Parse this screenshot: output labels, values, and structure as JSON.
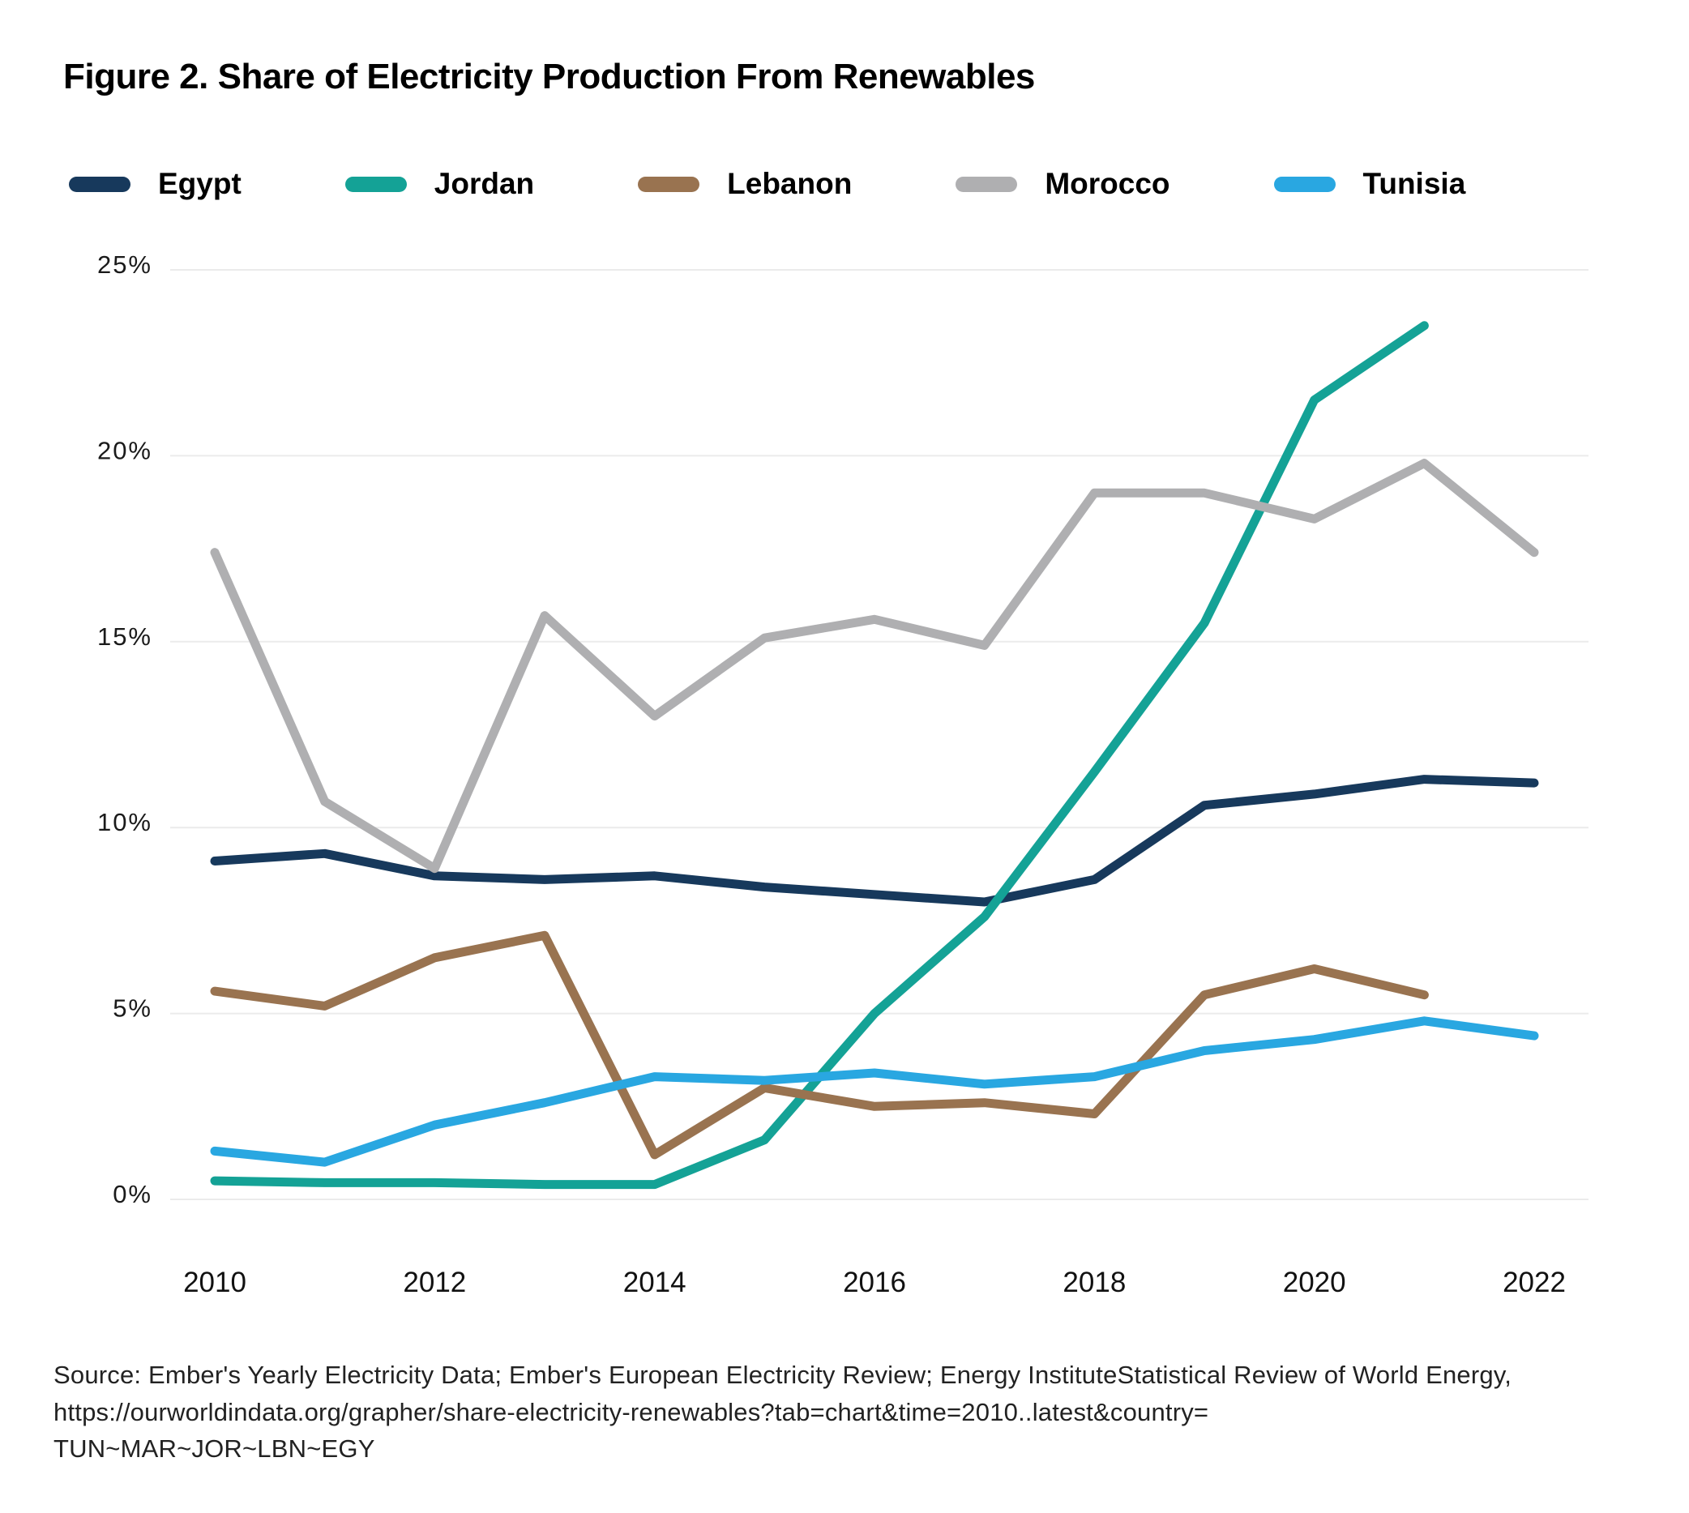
{
  "page": {
    "title": "Figure 2. Share of Electricity Production From Renewables"
  },
  "source": {
    "line1": "Source: Ember's Yearly Electricity Data; Ember's European Electricity Review; Energy InstituteStatistical Review of World Energy,",
    "line2": "https://ourworldindata.org/grapher/share-electricity-renewables?tab=chart&time=2010..latest&country=",
    "line3": "TUN~MAR~JOR~LBN~EGY"
  },
  "colors": {
    "egypt": "#17395C",
    "jordan": "#14A296",
    "lebanon": "#997350",
    "morocco": "#AFAFB1",
    "tunisia": "#29A7E1",
    "gridline": "#EBEBEB",
    "text": "#000000"
  },
  "chart_data": {
    "type": "line",
    "title": "Figure 2. Share of Electricity Production From Renewables",
    "xlabel": "",
    "ylabel": "",
    "x_tick_labels": [
      "2010",
      "2012",
      "2014",
      "2016",
      "2018",
      "2020",
      "2022"
    ],
    "x_tick_years": [
      2010,
      2012,
      2014,
      2016,
      2018,
      2020,
      2022
    ],
    "y_ticks": [
      0,
      5,
      10,
      15,
      20,
      25
    ],
    "y_tick_labels": [
      "0%",
      "5%",
      "10%",
      "15%",
      "20%",
      "25%"
    ],
    "ylim": [
      0,
      25
    ],
    "xlim": [
      2010,
      2022
    ],
    "grid": true,
    "legend_position": "top",
    "series": [
      {
        "name": "Egypt",
        "color": "#17395C",
        "years": [
          2010,
          2011,
          2012,
          2013,
          2014,
          2015,
          2016,
          2017,
          2018,
          2019,
          2020,
          2021,
          2022
        ],
        "values": [
          9.1,
          9.3,
          8.7,
          8.6,
          8.7,
          8.4,
          8.2,
          8.0,
          8.6,
          10.6,
          10.9,
          11.3,
          11.2
        ]
      },
      {
        "name": "Jordan",
        "color": "#14A296",
        "years": [
          2010,
          2011,
          2012,
          2013,
          2014,
          2015,
          2016,
          2017,
          2018,
          2019,
          2020,
          2021
        ],
        "values": [
          0.5,
          0.45,
          0.45,
          0.4,
          0.4,
          1.6,
          5.0,
          7.6,
          11.5,
          15.5,
          21.5,
          23.5
        ]
      },
      {
        "name": "Lebanon",
        "color": "#997350",
        "years": [
          2010,
          2011,
          2012,
          2013,
          2014,
          2015,
          2016,
          2017,
          2018,
          2019,
          2020,
          2021
        ],
        "values": [
          5.6,
          5.2,
          6.5,
          7.1,
          1.2,
          3.0,
          2.5,
          2.6,
          2.3,
          5.5,
          6.2,
          5.5
        ]
      },
      {
        "name": "Morocco",
        "color": "#AFAFB1",
        "years": [
          2010,
          2011,
          2012,
          2013,
          2014,
          2015,
          2016,
          2017,
          2018,
          2019,
          2020,
          2021,
          2022
        ],
        "values": [
          17.4,
          10.7,
          8.9,
          15.7,
          13.0,
          15.1,
          15.6,
          14.9,
          19.0,
          19.0,
          18.3,
          19.8,
          17.4
        ]
      },
      {
        "name": "Tunisia",
        "color": "#29A7E1",
        "years": [
          2010,
          2011,
          2012,
          2013,
          2014,
          2015,
          2016,
          2017,
          2018,
          2019,
          2020,
          2021,
          2022
        ],
        "values": [
          1.3,
          1.0,
          2.0,
          2.6,
          3.3,
          3.2,
          3.4,
          3.1,
          3.3,
          4.0,
          4.3,
          4.8,
          4.4
        ]
      }
    ]
  }
}
